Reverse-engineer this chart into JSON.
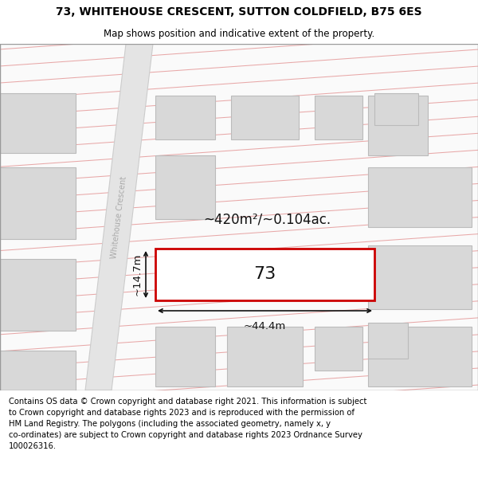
{
  "title_line1": "73, WHITEHOUSE CRESCENT, SUTTON COLDFIELD, B75 6ES",
  "title_line2": "Map shows position and indicative extent of the property.",
  "footer_text": "Contains OS data © Crown copyright and database right 2021. This information is subject\nto Crown copyright and database rights 2023 and is reproduced with the permission of\nHM Land Registry. The polygons (including the associated geometry, namely x, y\nco-ordinates) are subject to Crown copyright and database rights 2023 Ordnance Survey\n100026316.",
  "area_label": "~420m²/~0.104ac.",
  "width_label": "~44.4m",
  "height_label": "~14.7m",
  "plot_number": "73",
  "street_label": "Whitehouse Crescent",
  "bg_color": "#ffffff",
  "grid_color": "#e8a8a8",
  "road_fill": "#e4e4e4",
  "road_edge": "#cccccc",
  "building_fill": "#d8d8d8",
  "building_edge": "#bbbbbb",
  "plot_fill": "#ffffff",
  "plot_edge": "#cc0000",
  "dim_color": "#111111",
  "street_color": "#aaaaaa",
  "title_fontsize": 10,
  "subtitle_fontsize": 8.5,
  "footer_fontsize": 7.2,
  "area_fontsize": 12,
  "number_fontsize": 16,
  "dim_fontsize": 9.5,
  "street_fontsize": 7
}
